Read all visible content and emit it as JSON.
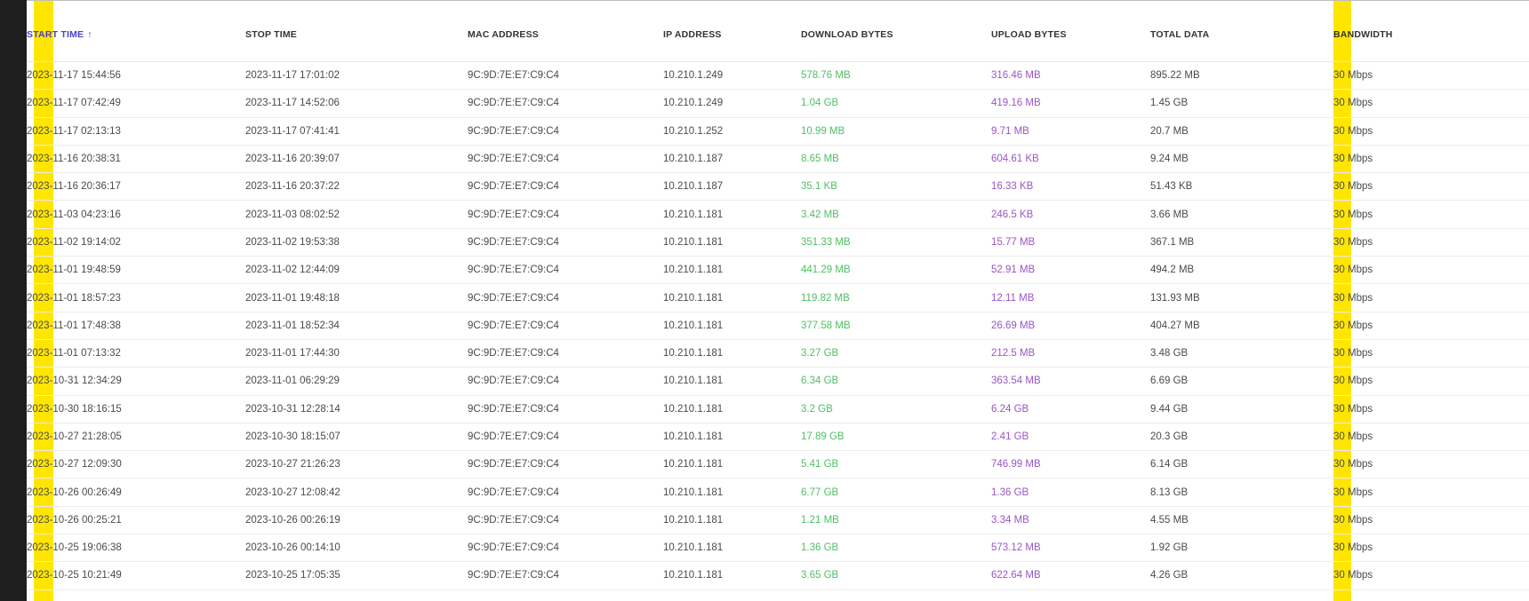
{
  "columns": [
    {
      "key": "start",
      "label": "START TIME",
      "sort_icon": "arrow-up-icon",
      "sort_glyph": "↑"
    },
    {
      "key": "stop",
      "label": "STOP TIME"
    },
    {
      "key": "mac",
      "label": "MAC ADDRESS"
    },
    {
      "key": "ip",
      "label": "IP ADDRESS"
    },
    {
      "key": "download",
      "label": "DOWNLOAD BYTES"
    },
    {
      "key": "upload",
      "label": "UPLOAD BYTES"
    },
    {
      "key": "total",
      "label": "TOTAL DATA"
    },
    {
      "key": "bandwidth",
      "label": "BANDWIDTH"
    }
  ],
  "colors": {
    "download": "#4fbf63",
    "upload": "#9a56c5",
    "highlight": "#ffe600",
    "sorted_header": "#4a3fc9"
  },
  "rows": [
    {
      "start": "2023-11-17 15:44:56",
      "stop": "2023-11-17 17:01:02",
      "mac": "9C:9D:7E:E7:C9:C4",
      "ip": "10.210.1.249",
      "download": "578.76 MB",
      "upload": "316.46 MB",
      "total": "895.22 MB",
      "bandwidth": "30 Mbps"
    },
    {
      "start": "2023-11-17 07:42:49",
      "stop": "2023-11-17 14:52:06",
      "mac": "9C:9D:7E:E7:C9:C4",
      "ip": "10.210.1.249",
      "download": "1.04 GB",
      "upload": "419.16 MB",
      "total": "1.45 GB",
      "bandwidth": "30 Mbps"
    },
    {
      "start": "2023-11-17 02:13:13",
      "stop": "2023-11-17 07:41:41",
      "mac": "9C:9D:7E:E7:C9:C4",
      "ip": "10.210.1.252",
      "download": "10.99 MB",
      "upload": "9.71 MB",
      "total": "20.7 MB",
      "bandwidth": "30 Mbps"
    },
    {
      "start": "2023-11-16 20:38:31",
      "stop": "2023-11-16 20:39:07",
      "mac": "9C:9D:7E:E7:C9:C4",
      "ip": "10.210.1.187",
      "download": "8.65 MB",
      "upload": "604.61 KB",
      "total": "9.24 MB",
      "bandwidth": "30 Mbps"
    },
    {
      "start": "2023-11-16 20:36:17",
      "stop": "2023-11-16 20:37:22",
      "mac": "9C:9D:7E:E7:C9:C4",
      "ip": "10.210.1.187",
      "download": "35.1 KB",
      "upload": "16.33 KB",
      "total": "51.43 KB",
      "bandwidth": "30 Mbps"
    },
    {
      "start": "2023-11-03 04:23:16",
      "stop": "2023-11-03 08:02:52",
      "mac": "9C:9D:7E:E7:C9:C4",
      "ip": "10.210.1.181",
      "download": "3.42 MB",
      "upload": "246.5 KB",
      "total": "3.66 MB",
      "bandwidth": "30 Mbps"
    },
    {
      "start": "2023-11-02 19:14:02",
      "stop": "2023-11-02 19:53:38",
      "mac": "9C:9D:7E:E7:C9:C4",
      "ip": "10.210.1.181",
      "download": "351.33 MB",
      "upload": "15.77 MB",
      "total": "367.1 MB",
      "bandwidth": "30 Mbps"
    },
    {
      "start": "2023-11-01 19:48:59",
      "stop": "2023-11-02 12:44:09",
      "mac": "9C:9D:7E:E7:C9:C4",
      "ip": "10.210.1.181",
      "download": "441.29 MB",
      "upload": "52.91 MB",
      "total": "494.2 MB",
      "bandwidth": "30 Mbps"
    },
    {
      "start": "2023-11-01 18:57:23",
      "stop": "2023-11-01 19:48:18",
      "mac": "9C:9D:7E:E7:C9:C4",
      "ip": "10.210.1.181",
      "download": "119.82 MB",
      "upload": "12.11 MB",
      "total": "131.93 MB",
      "bandwidth": "30 Mbps"
    },
    {
      "start": "2023-11-01 17:48:38",
      "stop": "2023-11-01 18:52:34",
      "mac": "9C:9D:7E:E7:C9:C4",
      "ip": "10.210.1.181",
      "download": "377.58 MB",
      "upload": "26.69 MB",
      "total": "404.27 MB",
      "bandwidth": "30 Mbps"
    },
    {
      "start": "2023-11-01 07:13:32",
      "stop": "2023-11-01 17:44:30",
      "mac": "9C:9D:7E:E7:C9:C4",
      "ip": "10.210.1.181",
      "download": "3.27 GB",
      "upload": "212.5 MB",
      "total": "3.48 GB",
      "bandwidth": "30 Mbps"
    },
    {
      "start": "2023-10-31 12:34:29",
      "stop": "2023-11-01 06:29:29",
      "mac": "9C:9D:7E:E7:C9:C4",
      "ip": "10.210.1.181",
      "download": "6.34 GB",
      "upload": "363.54 MB",
      "total": "6.69 GB",
      "bandwidth": "30 Mbps"
    },
    {
      "start": "2023-10-30 18:16:15",
      "stop": "2023-10-31 12:28:14",
      "mac": "9C:9D:7E:E7:C9:C4",
      "ip": "10.210.1.181",
      "download": "3.2 GB",
      "upload": "6.24 GB",
      "total": "9.44 GB",
      "bandwidth": "30 Mbps"
    },
    {
      "start": "2023-10-27 21:28:05",
      "stop": "2023-10-30 18:15:07",
      "mac": "9C:9D:7E:E7:C9:C4",
      "ip": "10.210.1.181",
      "download": "17.89 GB",
      "upload": "2.41 GB",
      "total": "20.3 GB",
      "bandwidth": "30 Mbps"
    },
    {
      "start": "2023-10-27 12:09:30",
      "stop": "2023-10-27 21:26:23",
      "mac": "9C:9D:7E:E7:C9:C4",
      "ip": "10.210.1.181",
      "download": "5.41 GB",
      "upload": "746.99 MB",
      "total": "6.14 GB",
      "bandwidth": "30 Mbps"
    },
    {
      "start": "2023-10-26 00:26:49",
      "stop": "2023-10-27 12:08:42",
      "mac": "9C:9D:7E:E7:C9:C4",
      "ip": "10.210.1.181",
      "download": "6.77 GB",
      "upload": "1.36 GB",
      "total": "8.13 GB",
      "bandwidth": "30 Mbps"
    },
    {
      "start": "2023-10-26 00:25:21",
      "stop": "2023-10-26 00:26:19",
      "mac": "9C:9D:7E:E7:C9:C4",
      "ip": "10.210.1.181",
      "download": "1.21 MB",
      "upload": "3.34 MB",
      "total": "4.55 MB",
      "bandwidth": "30 Mbps"
    },
    {
      "start": "2023-10-25 19:06:38",
      "stop": "2023-10-26 00:14:10",
      "mac": "9C:9D:7E:E7:C9:C4",
      "ip": "10.210.1.181",
      "download": "1.36 GB",
      "upload": "573.12 MB",
      "total": "1.92 GB",
      "bandwidth": "30 Mbps"
    },
    {
      "start": "2023-10-25 10:21:49",
      "stop": "2023-10-25 17:05:35",
      "mac": "9C:9D:7E:E7:C9:C4",
      "ip": "10.210.1.181",
      "download": "3.65 GB",
      "upload": "622.64 MB",
      "total": "4.26 GB",
      "bandwidth": "30 Mbps"
    }
  ]
}
